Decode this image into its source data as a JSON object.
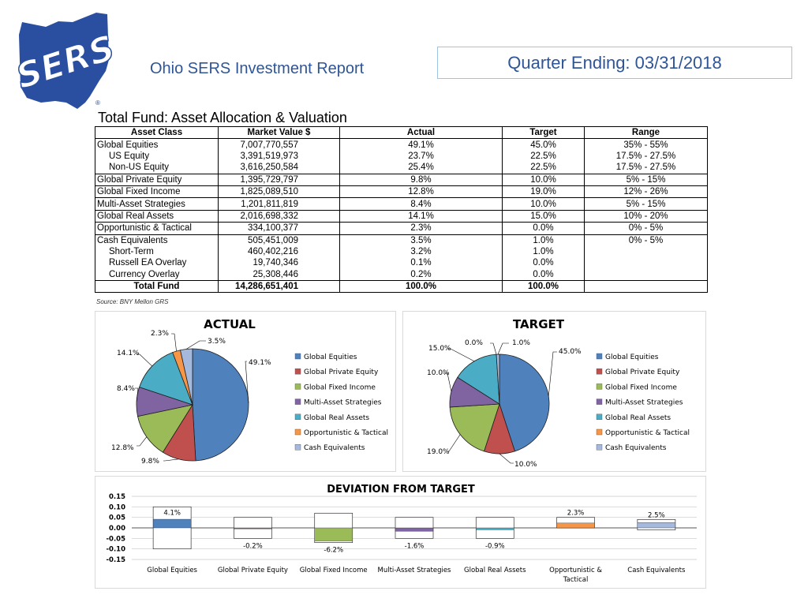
{
  "header": {
    "report_title": "Ohio SERS Investment Report",
    "quarter": "Quarter Ending: 03/31/2018",
    "logo_text": "SERS",
    "registered_mark": "®",
    "brand_color": "#2f5597"
  },
  "allocation_table": {
    "title": "Total Fund:  Asset Allocation & Valuation",
    "columns": [
      "Asset Class",
      "Market Value $",
      "Actual",
      "Target",
      "Range"
    ],
    "rows": [
      {
        "asset": "Global Equities",
        "value": "7,007,770,557",
        "actual": "49.1%",
        "target": "45.0%",
        "range": "35% - 55%"
      },
      {
        "asset": "US Equity",
        "value": "3,391,519,973",
        "actual": "23.7%",
        "target": "22.5%",
        "range": "17.5% - 27.5%"
      },
      {
        "asset": "Non-US Equity",
        "value": "3,616,250,584",
        "actual": "25.4%",
        "target": "22.5%",
        "range": "17.5% - 27.5%"
      },
      {
        "asset": "Global Private Equity",
        "value": "1,395,729,797",
        "actual": "9.8%",
        "target": "10.0%",
        "range": "5% - 15%"
      },
      {
        "asset": "Global Fixed Income",
        "value": "1,825,089,510",
        "actual": "12.8%",
        "target": "19.0%",
        "range": "12% - 26%"
      },
      {
        "asset": "Multi-Asset Strategies",
        "value": "1,201,811,819",
        "actual": "8.4%",
        "target": "10.0%",
        "range": "5% - 15%"
      },
      {
        "asset": "Global Real Assets",
        "value": "2,016,698,332",
        "actual": "14.1%",
        "target": "15.0%",
        "range": "10% - 20%"
      },
      {
        "asset": "Opportunistic & Tactical",
        "value": "334,100,377",
        "actual": "2.3%",
        "target": "0.0%",
        "range": "0% - 5%"
      },
      {
        "asset": "Cash Equivalents",
        "value": "505,451,009",
        "actual": "3.5%",
        "target": "1.0%",
        "range": "0% - 5%"
      },
      {
        "asset": "Short-Term",
        "value": "460,402,216",
        "actual": "3.2%",
        "target": "1.0%",
        "range": ""
      },
      {
        "asset": "Russell EA Overlay",
        "value": "19,740,346",
        "actual": "0.1%",
        "target": "0.0%",
        "range": ""
      },
      {
        "asset": "Currency Overlay",
        "value": "25,308,446",
        "actual": "0.2%",
        "target": "0.0%",
        "range": ""
      }
    ],
    "total": {
      "asset": "Total Fund",
      "value": "14,286,651,401",
      "actual": "100.0%",
      "target": "100.0%",
      "range": ""
    },
    "source": "Source: BNY Mellon GRS"
  },
  "chart_data": [
    {
      "type": "pie",
      "title": "ACTUAL",
      "categories": [
        "Global Equities",
        "Global Private Equity",
        "Global Fixed Income",
        "Multi-Asset Strategies",
        "Global Real Assets",
        "Opportunistic & Tactical",
        "Cash Equivalents"
      ],
      "values": [
        49.1,
        9.8,
        12.8,
        8.4,
        14.1,
        2.3,
        3.5
      ],
      "labels": [
        "49.1%",
        "9.8%",
        "12.8%",
        "8.4%",
        "14.1%",
        "2.3%",
        "3.5%"
      ],
      "colors": [
        "#4f81bd",
        "#c0504d",
        "#9bbb59",
        "#8064a2",
        "#4bacc6",
        "#f79646",
        "#a5b9dc"
      ],
      "legend": "right"
    },
    {
      "type": "pie",
      "title": "TARGET",
      "categories": [
        "Global Equities",
        "Global Private Equity",
        "Global Fixed Income",
        "Multi-Asset Strategies",
        "Global Real Assets",
        "Opportunistic & Tactical",
        "Cash Equivalents"
      ],
      "values": [
        45.0,
        10.0,
        19.0,
        10.0,
        15.0,
        0.0,
        1.0
      ],
      "labels": [
        "45.0%",
        "10.0%",
        "19.0%",
        "10.0%",
        "15.0%",
        "0.0%",
        "1.0%"
      ],
      "colors": [
        "#4f81bd",
        "#c0504d",
        "#9bbb59",
        "#8064a2",
        "#4bacc6",
        "#f79646",
        "#a5b9dc"
      ],
      "legend": "right"
    },
    {
      "type": "bar",
      "title": "DEVIATION FROM TARGET",
      "categories": [
        "Global Equities",
        "Global Private Equity",
        "Global Fixed Income",
        "Multi-Asset Strategies",
        "Global Real Assets",
        "Opportunistic & Tactical",
        "Cash Equivalents"
      ],
      "values": [
        0.041,
        -0.002,
        -0.062,
        -0.016,
        -0.009,
        0.023,
        0.025
      ],
      "labels": [
        "4.1%",
        "-0.2%",
        "-6.2%",
        "-1.6%",
        "-0.9%",
        "2.3%",
        "2.5%"
      ],
      "range_high": [
        0.1,
        0.05,
        0.07,
        0.05,
        0.05,
        0.05,
        0.04
      ],
      "range_low": [
        -0.1,
        -0.05,
        -0.07,
        -0.05,
        -0.05,
        0.0,
        -0.01
      ],
      "colors": [
        "#4f81bd",
        "#c0504d",
        "#9bbb59",
        "#8064a2",
        "#4bacc6",
        "#f79646",
        "#a5b9dc"
      ],
      "ylim": [
        -0.15,
        0.15
      ],
      "yticks": [
        "0.15",
        "0.10",
        "0.05",
        "0.00",
        "-0.05",
        "-0.10",
        "-0.15"
      ],
      "grid": true
    }
  ]
}
